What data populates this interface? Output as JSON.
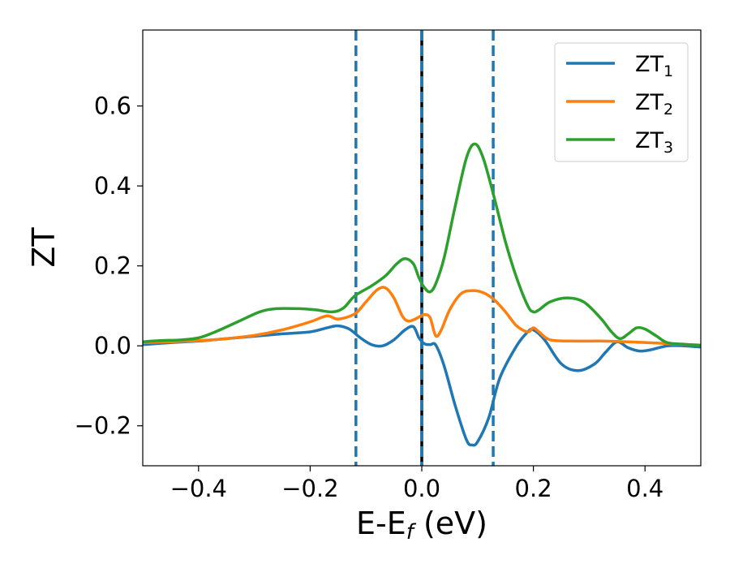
{
  "chart_data": {
    "type": "line",
    "xlabel": {
      "main": "E-E",
      "sub": "f",
      "tail": " (eV)"
    },
    "ylabel": "ZT",
    "xlim": [
      -0.5,
      0.5
    ],
    "ylim": [
      -0.3,
      0.79
    ],
    "xticks": [
      {
        "value": -0.4,
        "label": "−0.4"
      },
      {
        "value": -0.2,
        "label": "−0.2"
      },
      {
        "value": 0.0,
        "label": "0.0"
      },
      {
        "value": 0.2,
        "label": "0.2"
      },
      {
        "value": 0.4,
        "label": "0.4"
      }
    ],
    "yticks": [
      {
        "value": -0.2,
        "label": "−0.2"
      },
      {
        "value": 0.0,
        "label": "0.0"
      },
      {
        "value": 0.2,
        "label": "0.2"
      },
      {
        "value": 0.4,
        "label": "0.4"
      },
      {
        "value": 0.6,
        "label": "0.6"
      }
    ],
    "grid": false,
    "legend_position": "top-right",
    "vertical_lines": [
      {
        "x": -0.118,
        "style": "dashed",
        "color": "#1f77b4"
      },
      {
        "x": 0.0,
        "style": "solid",
        "color": "#000000"
      },
      {
        "x": 0.0,
        "style": "dashed",
        "color": "#1f77b4"
      },
      {
        "x": 0.128,
        "style": "dashed",
        "color": "#1f77b4"
      }
    ],
    "series": [
      {
        "name": "ZT",
        "sub": "1",
        "color": "#1f77b4",
        "points": [
          [
            -0.5,
            0.003
          ],
          [
            -0.45,
            0.008
          ],
          [
            -0.4,
            0.012
          ],
          [
            -0.35,
            0.018
          ],
          [
            -0.3,
            0.024
          ],
          [
            -0.25,
            0.03
          ],
          [
            -0.2,
            0.035
          ],
          [
            -0.17,
            0.045
          ],
          [
            -0.15,
            0.05
          ],
          [
            -0.13,
            0.042
          ],
          [
            -0.11,
            0.02
          ],
          [
            -0.09,
            0.003
          ],
          [
            -0.07,
            0.0
          ],
          [
            -0.05,
            0.015
          ],
          [
            -0.03,
            0.04
          ],
          [
            -0.015,
            0.048
          ],
          [
            -0.005,
            0.02
          ],
          [
            0.005,
            0.005
          ],
          [
            0.015,
            0.003
          ],
          [
            0.025,
            0.002
          ],
          [
            0.04,
            -0.05
          ],
          [
            0.06,
            -0.15
          ],
          [
            0.08,
            -0.235
          ],
          [
            0.09,
            -0.248
          ],
          [
            0.1,
            -0.24
          ],
          [
            0.12,
            -0.18
          ],
          [
            0.14,
            -0.08
          ],
          [
            0.17,
            0.0
          ],
          [
            0.19,
            0.035
          ],
          [
            0.2,
            0.04
          ],
          [
            0.22,
            0.015
          ],
          [
            0.25,
            -0.045
          ],
          [
            0.28,
            -0.062
          ],
          [
            0.31,
            -0.045
          ],
          [
            0.33,
            -0.015
          ],
          [
            0.35,
            0.01
          ],
          [
            0.37,
            -0.005
          ],
          [
            0.39,
            -0.013
          ],
          [
            0.41,
            -0.01
          ],
          [
            0.44,
            0.0
          ],
          [
            0.47,
            0.0
          ],
          [
            0.5,
            -0.003
          ]
        ]
      },
      {
        "name": "ZT",
        "sub": "2",
        "color": "#ff7f0e",
        "points": [
          [
            -0.5,
            0.008
          ],
          [
            -0.45,
            0.01
          ],
          [
            -0.4,
            0.013
          ],
          [
            -0.35,
            0.018
          ],
          [
            -0.3,
            0.026
          ],
          [
            -0.25,
            0.04
          ],
          [
            -0.2,
            0.06
          ],
          [
            -0.17,
            0.075
          ],
          [
            -0.15,
            0.067
          ],
          [
            -0.12,
            0.08
          ],
          [
            -0.1,
            0.11
          ],
          [
            -0.08,
            0.14
          ],
          [
            -0.065,
            0.145
          ],
          [
            -0.05,
            0.12
          ],
          [
            -0.035,
            0.075
          ],
          [
            -0.025,
            0.062
          ],
          [
            -0.015,
            0.065
          ],
          [
            -0.005,
            0.072
          ],
          [
            0.005,
            0.078
          ],
          [
            0.015,
            0.07
          ],
          [
            0.025,
            0.025
          ],
          [
            0.035,
            0.04
          ],
          [
            0.05,
            0.09
          ],
          [
            0.07,
            0.13
          ],
          [
            0.09,
            0.138
          ],
          [
            0.11,
            0.133
          ],
          [
            0.13,
            0.115
          ],
          [
            0.15,
            0.085
          ],
          [
            0.17,
            0.05
          ],
          [
            0.19,
            0.035
          ],
          [
            0.2,
            0.045
          ],
          [
            0.21,
            0.035
          ],
          [
            0.23,
            0.015
          ],
          [
            0.27,
            0.012
          ],
          [
            0.32,
            0.012
          ],
          [
            0.37,
            0.01
          ],
          [
            0.42,
            0.007
          ],
          [
            0.46,
            0.004
          ],
          [
            0.5,
            0.002
          ]
        ]
      },
      {
        "name": "ZT",
        "sub": "3",
        "color": "#2ca02c",
        "points": [
          [
            -0.5,
            0.01
          ],
          [
            -0.47,
            0.013
          ],
          [
            -0.43,
            0.015
          ],
          [
            -0.4,
            0.02
          ],
          [
            -0.37,
            0.035
          ],
          [
            -0.33,
            0.06
          ],
          [
            -0.29,
            0.085
          ],
          [
            -0.26,
            0.093
          ],
          [
            -0.22,
            0.093
          ],
          [
            -0.19,
            0.09
          ],
          [
            -0.16,
            0.085
          ],
          [
            -0.14,
            0.095
          ],
          [
            -0.12,
            0.125
          ],
          [
            -0.09,
            0.15
          ],
          [
            -0.065,
            0.175
          ],
          [
            -0.045,
            0.205
          ],
          [
            -0.03,
            0.218
          ],
          [
            -0.015,
            0.205
          ],
          [
            -0.005,
            0.17
          ],
          [
            0.005,
            0.145
          ],
          [
            0.015,
            0.135
          ],
          [
            0.025,
            0.155
          ],
          [
            0.04,
            0.22
          ],
          [
            0.06,
            0.35
          ],
          [
            0.08,
            0.47
          ],
          [
            0.095,
            0.505
          ],
          [
            0.11,
            0.47
          ],
          [
            0.13,
            0.37
          ],
          [
            0.15,
            0.26
          ],
          [
            0.17,
            0.17
          ],
          [
            0.19,
            0.1
          ],
          [
            0.2,
            0.085
          ],
          [
            0.21,
            0.09
          ],
          [
            0.23,
            0.11
          ],
          [
            0.26,
            0.12
          ],
          [
            0.29,
            0.11
          ],
          [
            0.32,
            0.07
          ],
          [
            0.34,
            0.035
          ],
          [
            0.355,
            0.018
          ],
          [
            0.37,
            0.03
          ],
          [
            0.385,
            0.045
          ],
          [
            0.4,
            0.042
          ],
          [
            0.42,
            0.025
          ],
          [
            0.44,
            0.008
          ],
          [
            0.47,
            0.004
          ],
          [
            0.5,
            0.001
          ]
        ]
      }
    ]
  }
}
